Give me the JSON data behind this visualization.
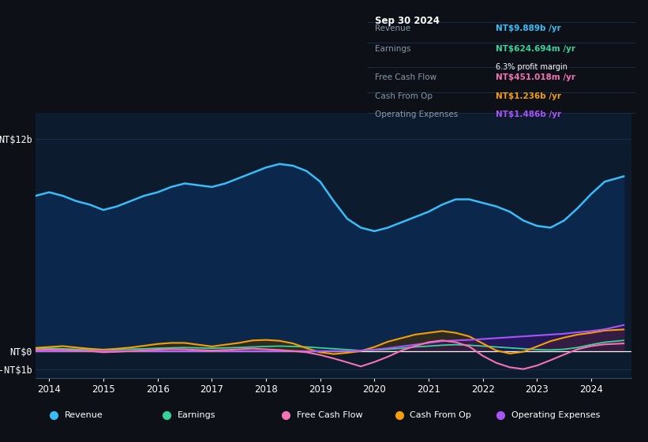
{
  "bg_color": "#0d1117",
  "plot_bg_color": "#0d1b2e",
  "revenue_color": "#38bdf8",
  "earnings_color": "#34d399",
  "free_cf_color": "#f472b6",
  "cash_op_color": "#f59e0b",
  "op_exp_color": "#a855f7",
  "years": [
    2013.75,
    2014.0,
    2014.25,
    2014.5,
    2014.75,
    2015.0,
    2015.25,
    2015.5,
    2015.75,
    2016.0,
    2016.25,
    2016.5,
    2016.75,
    2017.0,
    2017.25,
    2017.5,
    2017.75,
    2018.0,
    2018.25,
    2018.5,
    2018.75,
    2019.0,
    2019.25,
    2019.5,
    2019.75,
    2020.0,
    2020.25,
    2020.5,
    2020.75,
    2021.0,
    2021.25,
    2021.5,
    2021.75,
    2022.0,
    2022.25,
    2022.5,
    2022.75,
    2023.0,
    2023.25,
    2023.5,
    2023.75,
    2024.0,
    2024.25,
    2024.6
  ],
  "revenue": [
    8.8,
    9.0,
    8.8,
    8.5,
    8.3,
    8.0,
    8.2,
    8.5,
    8.8,
    9.0,
    9.3,
    9.5,
    9.4,
    9.3,
    9.5,
    9.8,
    10.1,
    10.4,
    10.6,
    10.5,
    10.2,
    9.6,
    8.5,
    7.5,
    7.0,
    6.8,
    7.0,
    7.3,
    7.6,
    7.9,
    8.3,
    8.6,
    8.6,
    8.4,
    8.2,
    7.9,
    7.4,
    7.1,
    7.0,
    7.4,
    8.1,
    8.9,
    9.6,
    9.9
  ],
  "earnings": [
    0.15,
    0.18,
    0.15,
    0.12,
    0.1,
    0.08,
    0.1,
    0.13,
    0.15,
    0.18,
    0.2,
    0.22,
    0.2,
    0.18,
    0.2,
    0.22,
    0.25,
    0.28,
    0.3,
    0.28,
    0.25,
    0.2,
    0.15,
    0.1,
    0.05,
    0.08,
    0.12,
    0.18,
    0.25,
    0.3,
    0.35,
    0.38,
    0.35,
    0.3,
    0.25,
    0.2,
    0.15,
    0.1,
    0.08,
    0.12,
    0.22,
    0.38,
    0.52,
    0.62
  ],
  "free_cf": [
    0.08,
    0.1,
    0.08,
    0.05,
    0.02,
    -0.05,
    -0.02,
    0.02,
    0.06,
    0.1,
    0.13,
    0.12,
    0.08,
    0.05,
    0.08,
    0.12,
    0.16,
    0.12,
    0.08,
    0.02,
    -0.05,
    -0.2,
    -0.4,
    -0.62,
    -0.85,
    -0.6,
    -0.3,
    0.05,
    0.3,
    0.52,
    0.62,
    0.52,
    0.28,
    -0.25,
    -0.65,
    -0.9,
    -1.0,
    -0.8,
    -0.5,
    -0.18,
    0.12,
    0.3,
    0.4,
    0.45
  ],
  "cash_op": [
    0.2,
    0.25,
    0.3,
    0.22,
    0.15,
    0.1,
    0.15,
    0.22,
    0.32,
    0.42,
    0.48,
    0.48,
    0.38,
    0.28,
    0.38,
    0.48,
    0.62,
    0.65,
    0.6,
    0.45,
    0.18,
    -0.05,
    -0.15,
    -0.08,
    0.02,
    0.25,
    0.55,
    0.75,
    0.95,
    1.05,
    1.15,
    1.05,
    0.85,
    0.45,
    0.05,
    -0.12,
    -0.02,
    0.28,
    0.58,
    0.78,
    0.95,
    1.05,
    1.18,
    1.24
  ],
  "op_exp": [
    0.02,
    0.02,
    0.02,
    0.02,
    0.02,
    0.02,
    0.02,
    0.02,
    0.02,
    0.02,
    0.02,
    0.02,
    0.02,
    0.02,
    0.02,
    0.02,
    0.02,
    0.02,
    0.02,
    0.02,
    0.02,
    0.02,
    0.02,
    0.02,
    0.05,
    0.1,
    0.18,
    0.28,
    0.38,
    0.48,
    0.58,
    0.62,
    0.65,
    0.7,
    0.75,
    0.8,
    0.85,
    0.9,
    0.95,
    1.0,
    1.08,
    1.15,
    1.25,
    1.49
  ],
  "legend": [
    {
      "label": "Revenue",
      "color": "#38bdf8"
    },
    {
      "label": "Earnings",
      "color": "#34d399"
    },
    {
      "label": "Free Cash Flow",
      "color": "#f472b6"
    },
    {
      "label": "Cash From Op",
      "color": "#f59e0b"
    },
    {
      "label": "Operating Expenses",
      "color": "#a855f7"
    }
  ],
  "tooltip_title": "Sep 30 2024",
  "tooltip_rows": [
    {
      "label": "Revenue",
      "value": "NT$9.889b /yr",
      "color": "#38bdf8",
      "sub": null
    },
    {
      "label": "Earnings",
      "value": "NT$624.694m /yr",
      "color": "#34d399",
      "sub": "6.3% profit margin"
    },
    {
      "label": "Free Cash Flow",
      "value": "NT$451.018m /yr",
      "color": "#f472b6",
      "sub": null
    },
    {
      "label": "Cash From Op",
      "value": "NT$1.236b /yr",
      "color": "#f59e0b",
      "sub": null
    },
    {
      "label": "Operating Expenses",
      "value": "NT$1.486b /yr",
      "color": "#a855f7",
      "sub": null
    }
  ]
}
